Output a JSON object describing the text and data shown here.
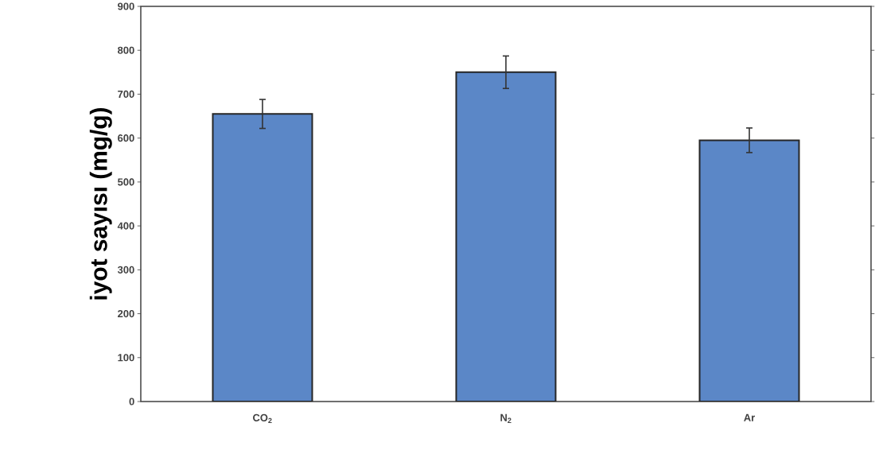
{
  "chart_data": {
    "type": "bar",
    "ylabel": "iyot sayısı (mg/g)",
    "categories": [
      "CO$_{2}$",
      "N$_{2}$",
      "Ar"
    ],
    "values": [
      655,
      750,
      595
    ],
    "errors": [
      33,
      37,
      28
    ],
    "color": "#5b87c7",
    "ylim": [
      0,
      900
    ],
    "yticks": [
      0,
      100,
      200,
      300,
      400,
      500,
      600,
      700,
      800,
      900
    ]
  }
}
